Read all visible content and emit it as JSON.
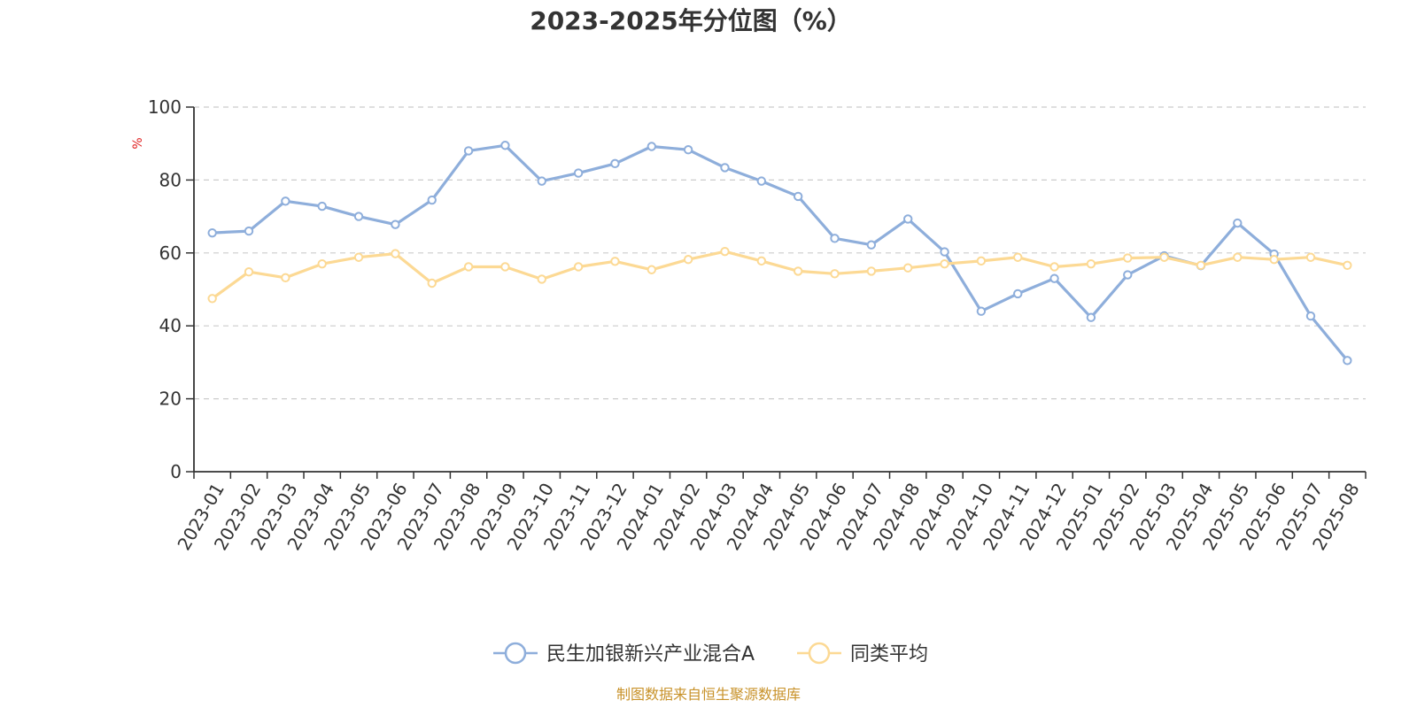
{
  "chart_data": {
    "type": "line",
    "title": "2023-2025年分位图（%）",
    "ylabel": "%",
    "ylim": [
      0,
      100
    ],
    "yticks": [
      0,
      20,
      40,
      60,
      80,
      100
    ],
    "grid": true,
    "legend_position": "bottom-center",
    "categories": [
      "2023-01",
      "2023-02",
      "2023-03",
      "2023-04",
      "2023-05",
      "2023-06",
      "2023-07",
      "2023-08",
      "2023-09",
      "2023-10",
      "2023-11",
      "2023-12",
      "2024-01",
      "2024-02",
      "2024-03",
      "2024-04",
      "2024-05",
      "2024-06",
      "2024-07",
      "2024-08",
      "2024-09",
      "2024-10",
      "2024-11",
      "2024-12",
      "2025-01",
      "2025-02",
      "2025-03",
      "2025-04",
      "2025-05",
      "2025-06",
      "2025-07",
      "2025-08"
    ],
    "series": [
      {
        "name": "民生加银新兴产业混合A",
        "color": "#8eaedb",
        "values": [
          65.5,
          66.0,
          74.2,
          72.8,
          70.0,
          67.8,
          74.5,
          88.0,
          89.5,
          79.7,
          81.9,
          84.5,
          89.2,
          88.3,
          83.4,
          79.7,
          75.5,
          64.0,
          62.2,
          69.3,
          60.3,
          44.0,
          48.8,
          53.0,
          42.3,
          54.0,
          59.2,
          56.5,
          68.2,
          59.7,
          42.7,
          30.5
        ]
      },
      {
        "name": "同类平均",
        "color": "#fcd994",
        "values": [
          47.5,
          54.8,
          53.2,
          57.0,
          58.8,
          59.8,
          51.7,
          56.2,
          56.2,
          52.8,
          56.2,
          57.7,
          55.4,
          58.2,
          60.4,
          57.8,
          55.0,
          54.3,
          55.0,
          55.9,
          57.0,
          57.8,
          58.8,
          56.2,
          57.0,
          58.6,
          58.8,
          56.6,
          58.8,
          58.2,
          58.8,
          56.6
        ]
      }
    ]
  },
  "source_text": "制图数据来自恒生聚源数据库",
  "colors": {
    "title": "#333333",
    "axis": "#333333",
    "grid": "#cccccc",
    "unit_label": "#e02020",
    "source": "#c8922a"
  }
}
